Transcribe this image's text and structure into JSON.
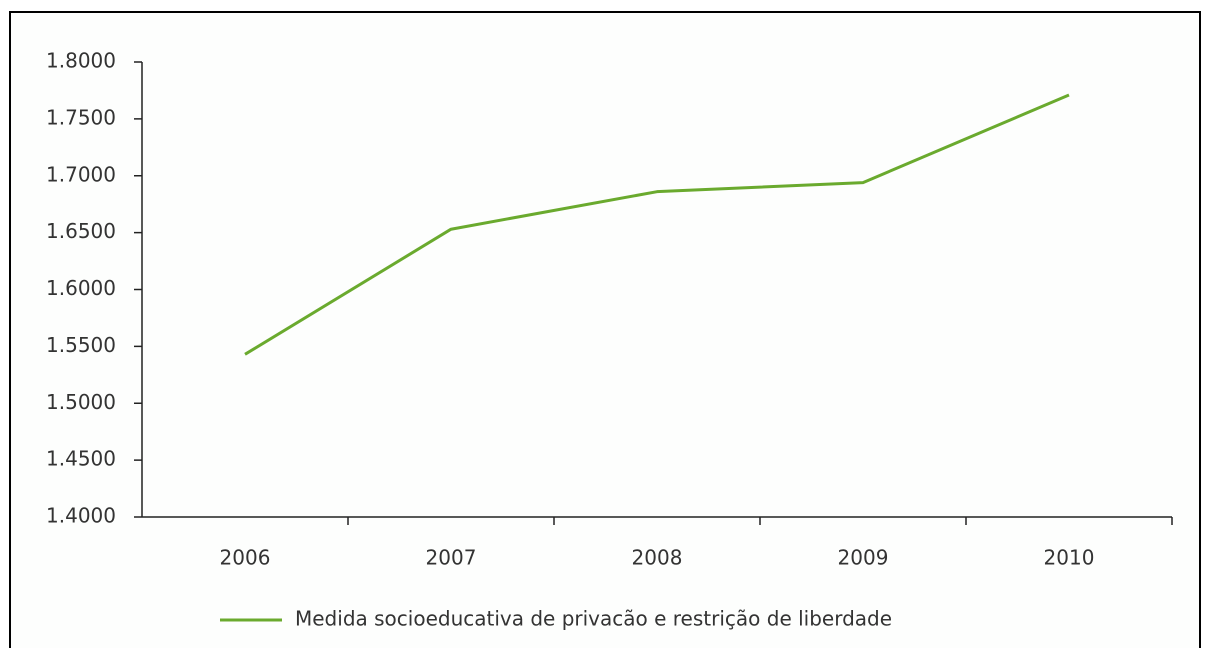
{
  "chart_data": {
    "type": "line",
    "categories": [
      "2006",
      "2007",
      "2008",
      "2009",
      "2010"
    ],
    "series": [
      {
        "name": "Medida socioeducativa de privacão e restrição de liberdade",
        "color": "#6aaa2e",
        "values": [
          1.543,
          1.653,
          1.686,
          1.694,
          1.771
        ]
      }
    ],
    "ylim": [
      1.4,
      1.8
    ],
    "yticks": [
      {
        "value": 1.4,
        "label": "1.4000"
      },
      {
        "value": 1.45,
        "label": "1.4500"
      },
      {
        "value": 1.5,
        "label": "1.5000"
      },
      {
        "value": 1.55,
        "label": "1.5500"
      },
      {
        "value": 1.6,
        "label": "1.6000"
      },
      {
        "value": 1.65,
        "label": "1.6500"
      },
      {
        "value": 1.7,
        "label": "1.7000"
      },
      {
        "value": 1.75,
        "label": "1.7500"
      },
      {
        "value": 1.8,
        "label": "1.8000"
      }
    ],
    "grid": false,
    "legend": "bottom"
  }
}
